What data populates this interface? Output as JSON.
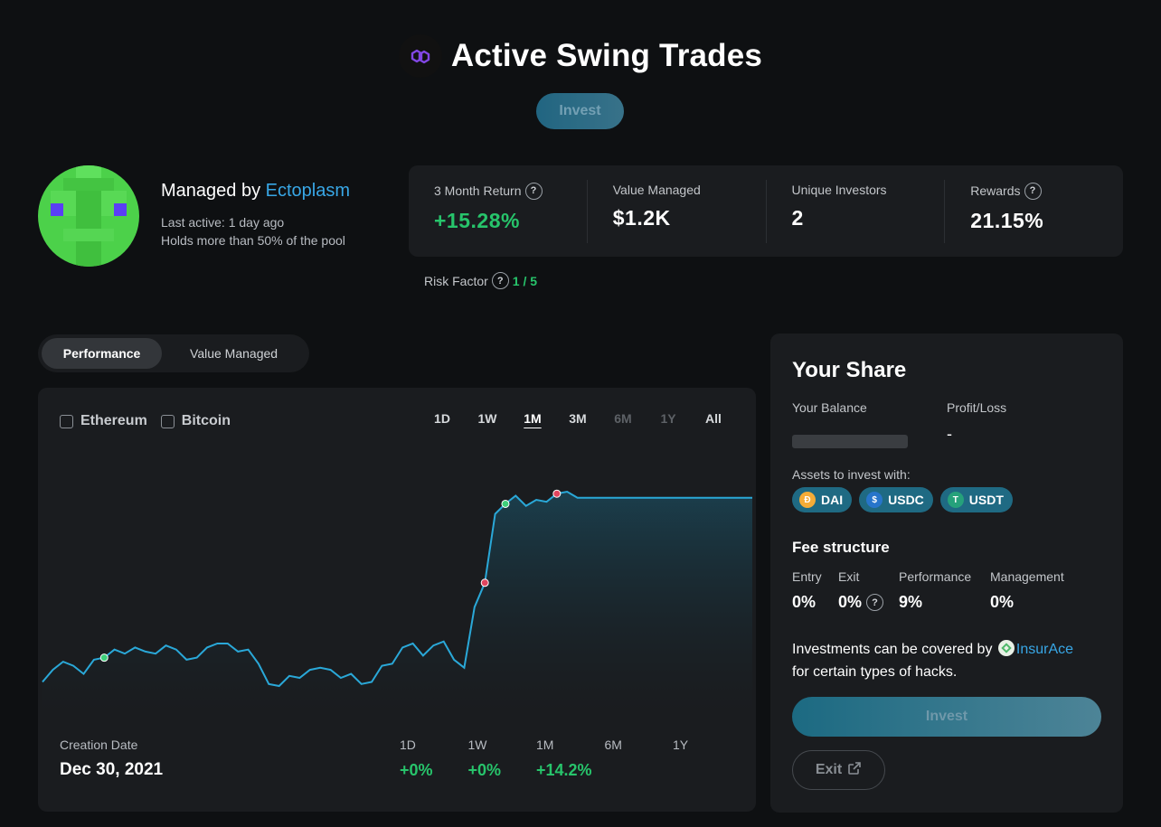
{
  "header": {
    "title": "Active Swing Trades",
    "invest_label": "Invest",
    "logo_icon": "polygon-logo-icon"
  },
  "manager": {
    "prefix": "Managed by",
    "name": "Ectoplasm",
    "last_active": "Last active: 1 day ago",
    "holds": "Holds more than 50% of the pool"
  },
  "stats": [
    {
      "label": "3 Month Return",
      "value": "+15.28%",
      "help": "?"
    },
    {
      "label": "Value Managed",
      "value": "$1.2K"
    },
    {
      "label": "Unique Investors",
      "value": "2"
    },
    {
      "label": "Rewards",
      "value": "21.15%",
      "help": "?"
    }
  ],
  "risk": {
    "label": "Risk Factor",
    "help": "?",
    "value": "1 / 5"
  },
  "tabs": [
    {
      "label": "Performance",
      "active": true
    },
    {
      "label": "Value Managed",
      "active": false
    }
  ],
  "chart": {
    "checkboxes": [
      "Ethereum",
      "Bitcoin"
    ],
    "ranges": [
      {
        "label": "1D",
        "state": "normal"
      },
      {
        "label": "1W",
        "state": "normal"
      },
      {
        "label": "1M",
        "state": "active"
      },
      {
        "label": "3M",
        "state": "normal"
      },
      {
        "label": "6M",
        "state": "disabled"
      },
      {
        "label": "1Y",
        "state": "disabled"
      },
      {
        "label": "All",
        "state": "normal"
      }
    ],
    "creation_label": "Creation Date",
    "creation_value": "Dec 30, 2021",
    "periods": [
      {
        "label": "1D",
        "value": "+0%"
      },
      {
        "label": "1W",
        "value": "+0%"
      },
      {
        "label": "1M",
        "value": "+14.2%"
      },
      {
        "label": "6M",
        "value": ""
      },
      {
        "label": "1Y",
        "value": ""
      }
    ],
    "line_color": "#2aa8d8",
    "marker_buy_color": "#3ecf7a",
    "marker_sell_color": "#e0455e"
  },
  "chart_data": {
    "type": "area",
    "series": [
      {
        "values": [
          3,
          9,
          13,
          11,
          7,
          14,
          15,
          19,
          17,
          20,
          18,
          17,
          21,
          19,
          14,
          15,
          20,
          22,
          22,
          18,
          19,
          12,
          2,
          1,
          6,
          5,
          9,
          10,
          9,
          5,
          7,
          2,
          3,
          11,
          12,
          20,
          22,
          16,
          21,
          23,
          14,
          10,
          40,
          52,
          86,
          91,
          95,
          90,
          93,
          92,
          96,
          97,
          94,
          94,
          94,
          94,
          94,
          94,
          94,
          94,
          94,
          94,
          94,
          94,
          94,
          94,
          94,
          94,
          94,
          94
        ]
      }
    ],
    "markers": [
      {
        "index": 6,
        "kind": "buy"
      },
      {
        "index": 43,
        "kind": "sell"
      },
      {
        "index": 45,
        "kind": "buy"
      },
      {
        "index": 50,
        "kind": "sell"
      }
    ],
    "grid": false,
    "legend": "none"
  },
  "share": {
    "title": "Your Share",
    "balance_label": "Your Balance",
    "pl_label": "Profit/Loss",
    "pl_value": "-",
    "assets_label": "Assets to invest with:",
    "assets": [
      {
        "symbol": "DAI",
        "color": "#f5ac37",
        "glyph": "Ð"
      },
      {
        "symbol": "USDC",
        "color": "#2775ca",
        "glyph": "$"
      },
      {
        "symbol": "USDT",
        "color": "#26a17b",
        "glyph": "T"
      }
    ],
    "fee_title": "Fee structure",
    "fees": [
      {
        "label": "Entry",
        "value": "0%"
      },
      {
        "label": "Exit",
        "value": "0%",
        "help": "?"
      },
      {
        "label": "Performance",
        "value": "9%"
      },
      {
        "label": "Management",
        "value": "0%"
      }
    ],
    "cover_prefix": "Investments can be covered by",
    "cover_brand": "InsurAce",
    "cover_suffix": "for certain types of hacks.",
    "invest_label": "Invest",
    "exit_label": "Exit"
  }
}
